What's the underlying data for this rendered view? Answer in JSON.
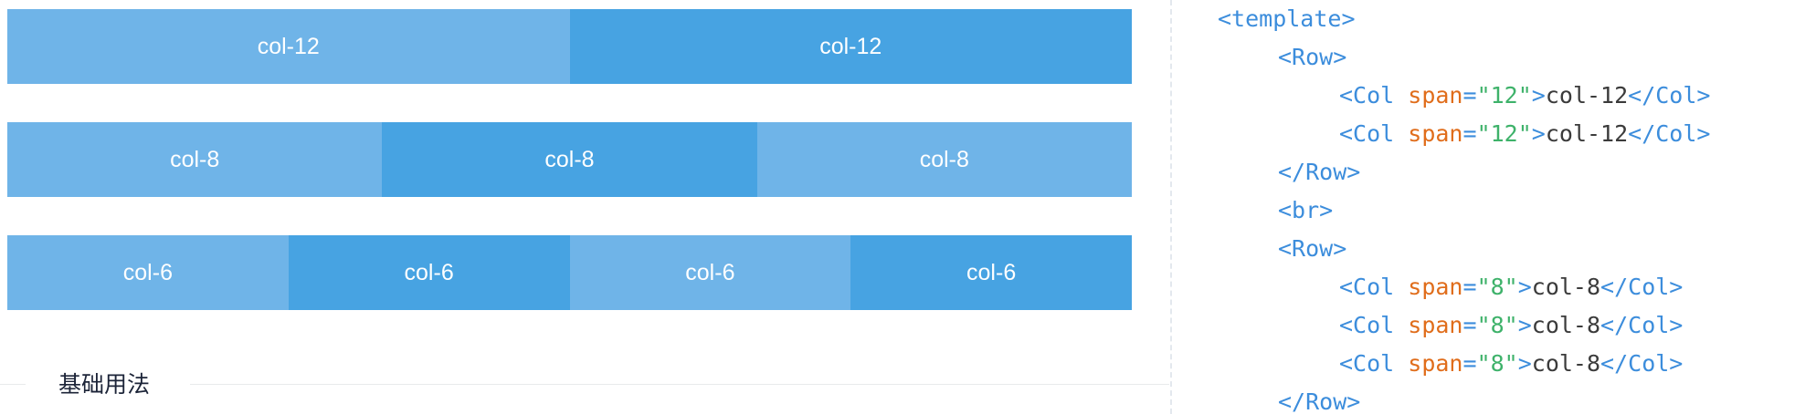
{
  "grid": {
    "rows": [
      {
        "cols": [
          {
            "label": "col-12",
            "span": 12
          },
          {
            "label": "col-12",
            "span": 12
          }
        ]
      },
      {
        "cols": [
          {
            "label": "col-8",
            "span": 8
          },
          {
            "label": "col-8",
            "span": 8
          },
          {
            "label": "col-8",
            "span": 8
          }
        ]
      },
      {
        "cols": [
          {
            "label": "col-6",
            "span": 6
          },
          {
            "label": "col-6",
            "span": 6
          },
          {
            "label": "col-6",
            "span": 6
          },
          {
            "label": "col-6",
            "span": 6
          }
        ]
      }
    ],
    "colors": {
      "light": "#6fb4e8",
      "dark": "#47a3e2"
    }
  },
  "section": {
    "title": "基础用法"
  },
  "code": {
    "line1": {
      "tag": "<template>"
    },
    "line2": {
      "tag": "<Row>"
    },
    "line3": {
      "open": "<Col",
      "attr": "span",
      "eq": "=",
      "val": "\"12\"",
      "close": ">",
      "text": "col-12",
      "end": "</Col>"
    },
    "line4": {
      "open": "<Col",
      "attr": "span",
      "eq": "=",
      "val": "\"12\"",
      "close": ">",
      "text": "col-12",
      "end": "</Col>"
    },
    "line5": {
      "tag": "</Row>"
    },
    "line6": {
      "tag": "<br>"
    },
    "line7": {
      "tag": "<Row>"
    },
    "line8": {
      "open": "<Col",
      "attr": "span",
      "eq": "=",
      "val": "\"8\"",
      "close": ">",
      "text": "col-8",
      "end": "</Col>"
    },
    "line9": {
      "open": "<Col",
      "attr": "span",
      "eq": "=",
      "val": "\"8\"",
      "close": ">",
      "text": "col-8",
      "end": "</Col>"
    },
    "line10": {
      "open": "<Col",
      "attr": "span",
      "eq": "=",
      "val": "\"8\"",
      "close": ">",
      "text": "col-8",
      "end": "</Col>"
    },
    "line11": {
      "tag": "</Row>"
    }
  }
}
